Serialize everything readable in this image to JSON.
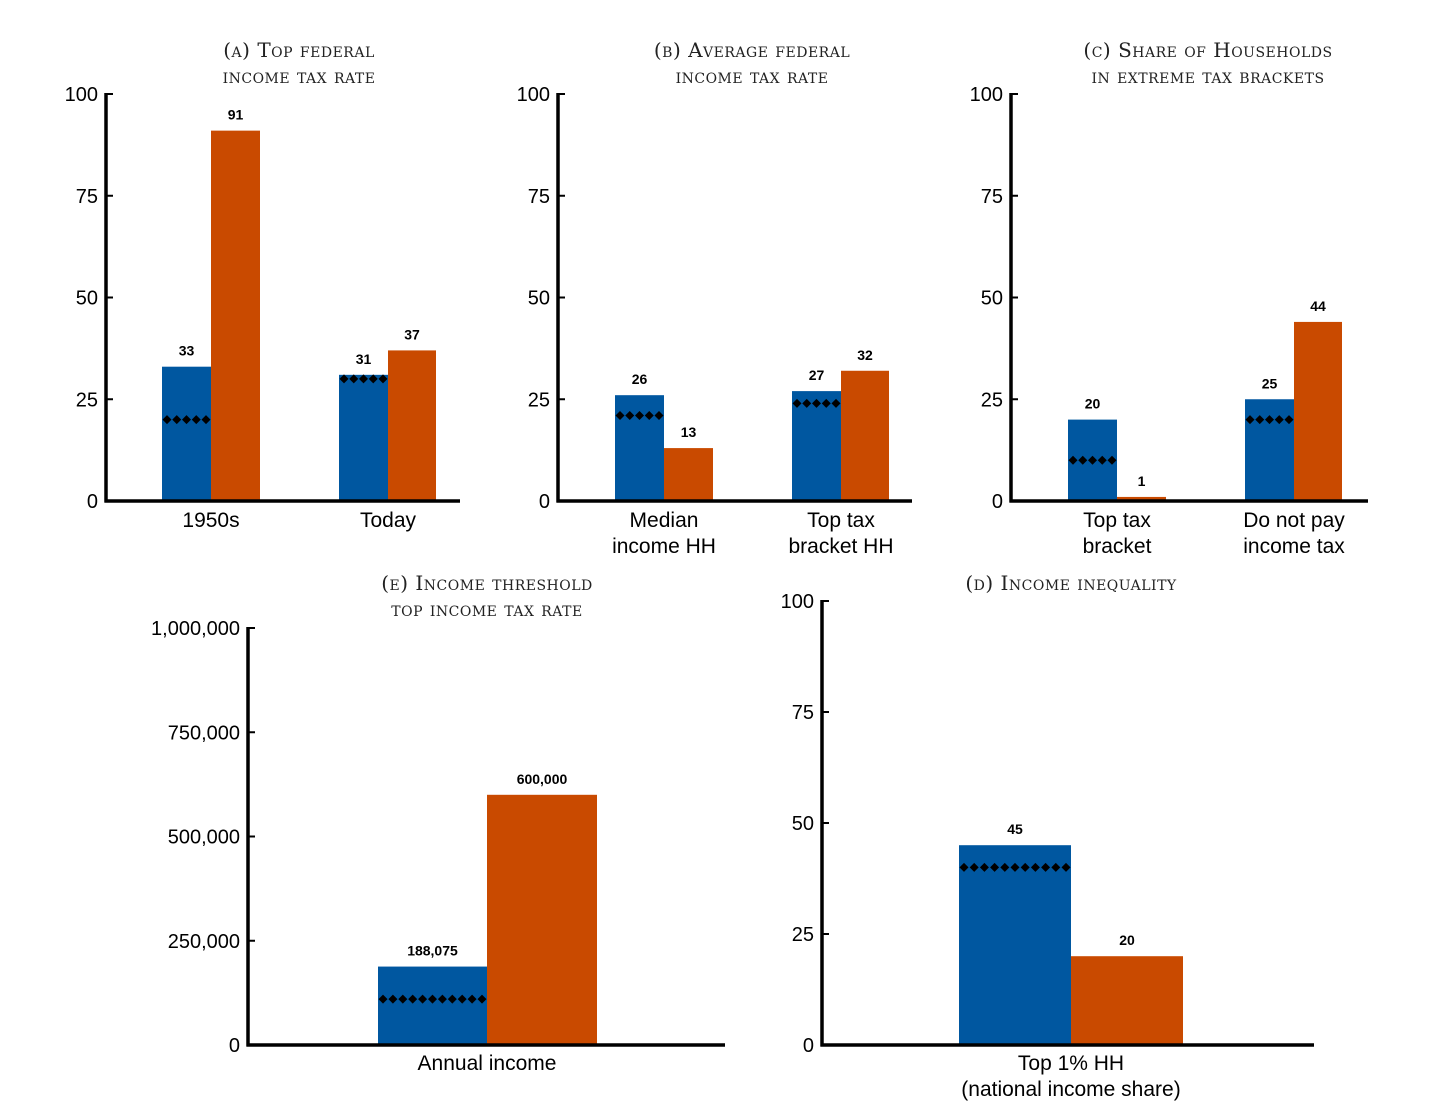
{
  "chart_data": [
    {
      "id": "a",
      "type": "bar",
      "title": [
        "(a) Top federal",
        "income tax rate"
      ],
      "ylim": [
        0,
        100
      ],
      "yticks": [
        "0",
        "25",
        "50",
        "75",
        "100"
      ],
      "categories": [
        [
          "1950s"
        ],
        [
          "Today"
        ]
      ],
      "series": [
        {
          "name": "blue",
          "color": "#0057a0",
          "values": [
            33,
            31
          ],
          "labels": [
            "33",
            "31"
          ]
        },
        {
          "name": "orange",
          "color": "#c94a00",
          "values": [
            91,
            37
          ],
          "labels": [
            "91",
            "37"
          ]
        }
      ],
      "reference": [
        20,
        30
      ]
    },
    {
      "id": "b",
      "type": "bar",
      "title": [
        "(b) Average federal",
        "income tax rate"
      ],
      "ylim": [
        0,
        100
      ],
      "yticks": [
        "0",
        "25",
        "50",
        "75",
        "100"
      ],
      "categories": [
        [
          "Median",
          "income HH"
        ],
        [
          "Top tax",
          "bracket HH"
        ]
      ],
      "series": [
        {
          "name": "blue",
          "color": "#0057a0",
          "values": [
            26,
            27
          ],
          "labels": [
            "26",
            "27"
          ]
        },
        {
          "name": "orange",
          "color": "#c94a00",
          "values": [
            13,
            32
          ],
          "labels": [
            "13",
            "32"
          ]
        }
      ],
      "reference": [
        21,
        24
      ]
    },
    {
      "id": "c",
      "type": "bar",
      "title": [
        "(c) Share of Households",
        "in extreme tax brackets"
      ],
      "ylim": [
        0,
        100
      ],
      "yticks": [
        "0",
        "25",
        "50",
        "75",
        "100"
      ],
      "categories": [
        [
          "Top tax",
          "bracket"
        ],
        [
          "Do not pay",
          "income tax"
        ]
      ],
      "series": [
        {
          "name": "blue",
          "color": "#0057a0",
          "values": [
            20,
            25
          ],
          "labels": [
            "20",
            "25"
          ]
        },
        {
          "name": "orange",
          "color": "#c94a00",
          "values": [
            1,
            44
          ],
          "labels": [
            "1",
            "44"
          ]
        }
      ],
      "reference": [
        10,
        20
      ]
    },
    {
      "id": "e",
      "type": "bar",
      "title": [
        "(e) Income threshold",
        "top income tax rate"
      ],
      "ylim": [
        0,
        1000000
      ],
      "yticks": [
        "0",
        "250,000",
        "500,000",
        "750,000",
        "1,000,000"
      ],
      "categories": [
        [
          "Annual income"
        ]
      ],
      "series": [
        {
          "name": "blue",
          "color": "#0057a0",
          "values": [
            188075
          ],
          "labels": [
            "188,075"
          ]
        },
        {
          "name": "orange",
          "color": "#c94a00",
          "values": [
            600000
          ],
          "labels": [
            "600,000"
          ]
        }
      ],
      "reference": [
        110000
      ]
    },
    {
      "id": "d",
      "type": "bar",
      "title": [
        "(d) Income inequality"
      ],
      "ylim": [
        0,
        100
      ],
      "yticks": [
        "0",
        "25",
        "50",
        "75",
        "100"
      ],
      "categories": [
        [
          "Top 1% HH",
          "(national income share)"
        ]
      ],
      "series": [
        {
          "name": "blue",
          "color": "#0057a0",
          "values": [
            45
          ],
          "labels": [
            "45"
          ]
        },
        {
          "name": "orange",
          "color": "#c94a00",
          "values": [
            20
          ],
          "labels": [
            "20"
          ]
        }
      ],
      "reference": [
        40
      ]
    }
  ]
}
